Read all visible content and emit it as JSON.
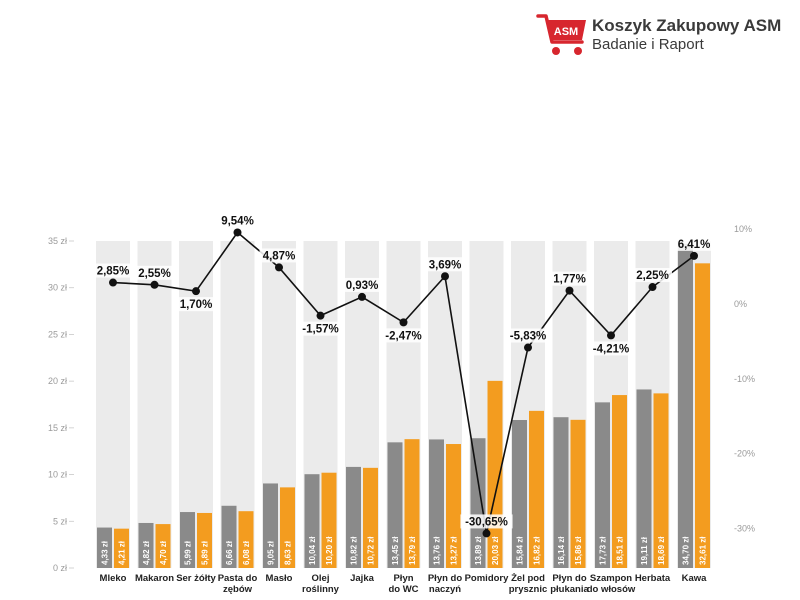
{
  "logo": {
    "title": "Koszyk Zakupowy ASM",
    "subtitle": "Badanie i Raport",
    "mark": "ASM",
    "colors": {
      "red": "#d7262e",
      "text": "#3a3a3a"
    }
  },
  "chart_data": {
    "type": "bar",
    "categories": [
      "Mleko",
      "Makaron",
      "Ser żółty",
      "Pasta do zębów",
      "Masło",
      "Olej roślinny",
      "Jajka",
      "Płyn do WC",
      "Płyn do naczyń",
      "Pomidory",
      "Żel pod prysznic",
      "Płyn do płukania",
      "Szampon do włosów",
      "Herbata",
      "Kawa"
    ],
    "category_lines": [
      [
        "Mleko"
      ],
      [
        "Makaron"
      ],
      [
        "Ser żółty"
      ],
      [
        "Pasta do",
        "zębów"
      ],
      [
        "Masło"
      ],
      [
        "Olej",
        "roślinny"
      ],
      [
        "Jajka"
      ],
      [
        "Płyn",
        "do WC"
      ],
      [
        "Płyn do",
        "naczyń"
      ],
      [
        "Pomidory"
      ],
      [
        "Żel pod",
        "prysznic"
      ],
      [
        "Płyn do",
        "płukania"
      ],
      [
        "Szampon",
        "do włosów"
      ],
      [
        "Herbata"
      ],
      [
        "Kawa"
      ]
    ],
    "series": [
      {
        "values": [
          4.33,
          4.82,
          5.99,
          6.66,
          9.05,
          10.04,
          10.82,
          13.45,
          13.76,
          13.89,
          15.84,
          16.14,
          17.73,
          19.11,
          34.7
        ],
        "labels": [
          "4,33 zł",
          "4,82 zł",
          "5,99 zł",
          "6,66 zł",
          "9,05 zł",
          "10,04 zł",
          "10,82 zł",
          "13,45 zł",
          "13,76 zł",
          "13,89 zł",
          "15,84 zł",
          "16,14 zł",
          "17,73 zł",
          "19,11 zł",
          "34,70 zł"
        ],
        "color": "#8a8a8a"
      },
      {
        "values": [
          4.21,
          4.7,
          5.89,
          6.08,
          8.63,
          10.2,
          10.72,
          13.79,
          13.27,
          20.03,
          16.82,
          15.86,
          18.51,
          18.69,
          32.61
        ],
        "labels": [
          "4,21 zł",
          "4,70 zł",
          "5,89 zł",
          "6,08 zł",
          "8,63 zł",
          "10,20 zł",
          "10,72 zł",
          "13,79 zł",
          "13,27 zł",
          "20,03 zł",
          "16,82 zł",
          "15,86 zł",
          "18,51 zł",
          "18,69 zł",
          "32,61 zł"
        ],
        "color": "#f39c1f"
      }
    ],
    "line": {
      "type": "line",
      "values": [
        2.85,
        2.55,
        1.7,
        9.54,
        4.87,
        -1.57,
        0.93,
        -2.47,
        3.69,
        -30.65,
        -5.83,
        1.77,
        -4.21,
        2.25,
        6.41
      ],
      "labels": [
        "2,85%",
        "2,55%",
        "1,70%",
        "9,54%",
        "4,87%",
        "-1,57%",
        "0,93%",
        "-2,47%",
        "3,69%",
        "-30,65%",
        "-5,83%",
        "1,77%",
        "-4,21%",
        "2,25%",
        "6,41%"
      ],
      "label_position": [
        "above",
        "above",
        "below",
        "above",
        "above",
        "below",
        "above",
        "below",
        "above",
        "above",
        "above",
        "above",
        "below",
        "above",
        "above"
      ],
      "color": "#111111"
    },
    "y_left": {
      "range": [
        0,
        35
      ],
      "ticks": [
        0,
        5,
        10,
        15,
        20,
        25,
        30,
        35
      ],
      "tick_labels": [
        "0 zł",
        "5 zł",
        "10 zł",
        "15 zł",
        "20 zł",
        "25 zł",
        "30 zł",
        "35 zł"
      ]
    },
    "y_right": {
      "range": [
        -35,
        10
      ],
      "ticks": [
        10,
        0,
        -10,
        -20,
        -30
      ],
      "tick_labels": [
        "10%",
        "0%",
        "-10%",
        "-20%",
        "-30%"
      ]
    },
    "background_color": "#ebebeb",
    "grid": false
  }
}
